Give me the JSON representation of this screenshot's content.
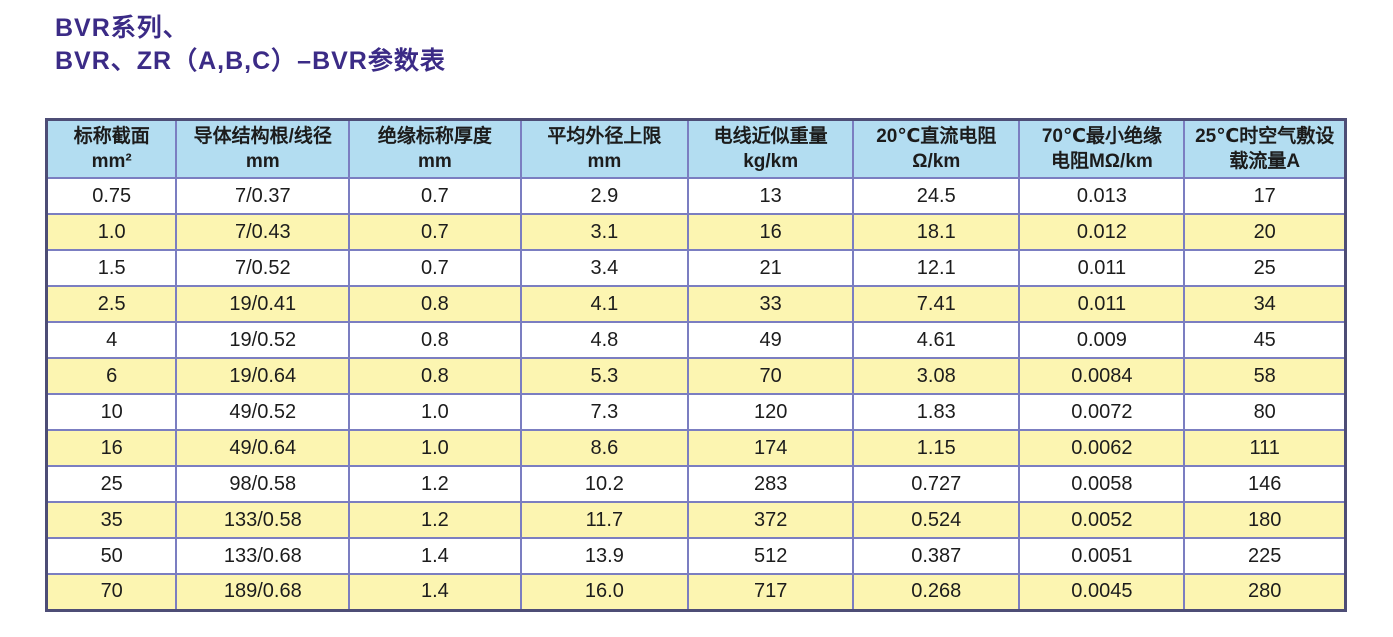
{
  "page": {
    "title_line1": "BVR系列、",
    "title_line2": "BVR、ZR（A,B,C）–BVR参数表"
  },
  "table": {
    "headers": [
      {
        "name": "标称截面",
        "unit": "mm²"
      },
      {
        "name": "导体结构根/线径",
        "unit": "mm"
      },
      {
        "name": "绝缘标称厚度",
        "unit": "mm"
      },
      {
        "name": "平均外径上限",
        "unit": "mm"
      },
      {
        "name": "电线近似重量",
        "unit": "kg/km"
      },
      {
        "name": "20℃直流电阻",
        "unit": "Ω/km"
      },
      {
        "name": "70℃最小绝缘",
        "unit": "电阻MΩ/km"
      },
      {
        "name": "25℃时空气敷设",
        "unit": "载流量A"
      }
    ],
    "rows": [
      [
        "0.75",
        "7/0.37",
        "0.7",
        "2.9",
        "13",
        "24.5",
        "0.013",
        "17"
      ],
      [
        "1.0",
        "7/0.43",
        "0.7",
        "3.1",
        "16",
        "18.1",
        "0.012",
        "20"
      ],
      [
        "1.5",
        "7/0.52",
        "0.7",
        "3.4",
        "21",
        "12.1",
        "0.011",
        "25"
      ],
      [
        "2.5",
        "19/0.41",
        "0.8",
        "4.1",
        "33",
        "7.41",
        "0.011",
        "34"
      ],
      [
        "4",
        "19/0.52",
        "0.8",
        "4.8",
        "49",
        "4.61",
        "0.009",
        "45"
      ],
      [
        "6",
        "19/0.64",
        "0.8",
        "5.3",
        "70",
        "3.08",
        "0.0084",
        "58"
      ],
      [
        "10",
        "49/0.52",
        "1.0",
        "7.3",
        "120",
        "1.83",
        "0.0072",
        "80"
      ],
      [
        "16",
        "49/0.64",
        "1.0",
        "8.6",
        "174",
        "1.15",
        "0.0062",
        "111"
      ],
      [
        "25",
        "98/0.58",
        "1.2",
        "10.2",
        "283",
        "0.727",
        "0.0058",
        "146"
      ],
      [
        "35",
        "133/0.58",
        "1.2",
        "11.7",
        "372",
        "0.524",
        "0.0052",
        "180"
      ],
      [
        "50",
        "133/0.68",
        "1.4",
        "13.9",
        "512",
        "0.387",
        "0.0051",
        "225"
      ],
      [
        "70",
        "189/0.68",
        "1.4",
        "16.0",
        "717",
        "0.268",
        "0.0045",
        "280"
      ]
    ]
  },
  "colors": {
    "title_color": "#3b2b86",
    "header_bg": "#b3ddf1",
    "row_bg": "#ffffff",
    "row_alt_bg": "#fcf5b1",
    "border_color": "#7b7ec1",
    "outer_border_color": "#4d4d76",
    "text_color": "#1c1c1c"
  }
}
